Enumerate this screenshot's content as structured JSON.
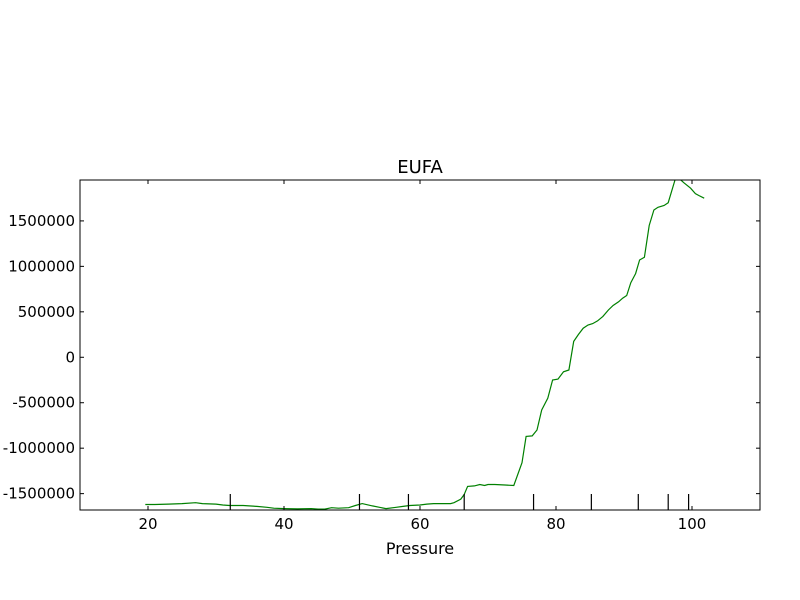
{
  "chart_data": {
    "type": "line",
    "title": "EUFA",
    "xlabel": "Pressure",
    "ylabel": "",
    "xlim": [
      10,
      110
    ],
    "ylim": [
      -1680000,
      1950000
    ],
    "xticks": [
      20,
      40,
      60,
      80,
      100
    ],
    "xtick_labels": [
      "20",
      "40",
      "60",
      "80",
      "100"
    ],
    "yticks": [
      1500000,
      1000000,
      500000,
      0,
      -500000,
      -1000000,
      -1500000
    ],
    "ytick_labels": [
      "1500000",
      "1000000",
      "500000",
      "0",
      "-500000",
      "-1000000",
      "-1500000"
    ],
    "rug_x": [
      32.1,
      51.1,
      58.3,
      66.5,
      76.7,
      85.2,
      92.1,
      96.5,
      99.5
    ],
    "grid": false,
    "series": [
      {
        "color": "#008000",
        "x": [
          19.6,
          21.0,
          23.0,
          25.0,
          27.0,
          28.0,
          30.0,
          31.0,
          32.0,
          34.0,
          36.0,
          37.5,
          38.5,
          40.0,
          42.0,
          44.0,
          45.0,
          46.0,
          47.0,
          48.0,
          49.5,
          50.5,
          51.5,
          53.0,
          55.0,
          56.5,
          57.5,
          58.5,
          60.0,
          61.0,
          62.0,
          63.5,
          64.5,
          65.0,
          66.0,
          66.5,
          67.0,
          68.0,
          68.8,
          69.5,
          70.0,
          71.0,
          72.5,
          73.8,
          75.0,
          75.6,
          76.5,
          77.2,
          77.9,
          78.8,
          79.5,
          80.3,
          81.1,
          81.9,
          82.6,
          83.3,
          84.0,
          84.7,
          85.4,
          86.1,
          86.9,
          87.7,
          88.4,
          89.2,
          89.8,
          90.4,
          91.0,
          91.7,
          92.3,
          93.0,
          93.7,
          94.4,
          95.0,
          95.9,
          96.5,
          97.5,
          98.2,
          98.8,
          99.8,
          100.5,
          101.0,
          101.8
        ],
        "y": [
          -1620000,
          -1620000,
          -1615000,
          -1610000,
          -1600000,
          -1610000,
          -1615000,
          -1625000,
          -1630000,
          -1630000,
          -1640000,
          -1650000,
          -1660000,
          -1665000,
          -1668000,
          -1665000,
          -1670000,
          -1670000,
          -1655000,
          -1660000,
          -1655000,
          -1630000,
          -1610000,
          -1635000,
          -1665000,
          -1650000,
          -1640000,
          -1630000,
          -1625000,
          -1615000,
          -1610000,
          -1610000,
          -1610000,
          -1600000,
          -1560000,
          -1510000,
          -1420000,
          -1415000,
          -1400000,
          -1410000,
          -1400000,
          -1400000,
          -1405000,
          -1410000,
          -1160000,
          -870000,
          -865000,
          -800000,
          -580000,
          -450000,
          -250000,
          -240000,
          -160000,
          -140000,
          175000,
          250000,
          320000,
          355000,
          370000,
          400000,
          450000,
          520000,
          570000,
          610000,
          650000,
          680000,
          820000,
          920000,
          1070000,
          1100000,
          1450000,
          1620000,
          1650000,
          1670000,
          1700000,
          1950000,
          1960000,
          1920000,
          1860000,
          1800000,
          1780000,
          1750000
        ]
      }
    ]
  }
}
